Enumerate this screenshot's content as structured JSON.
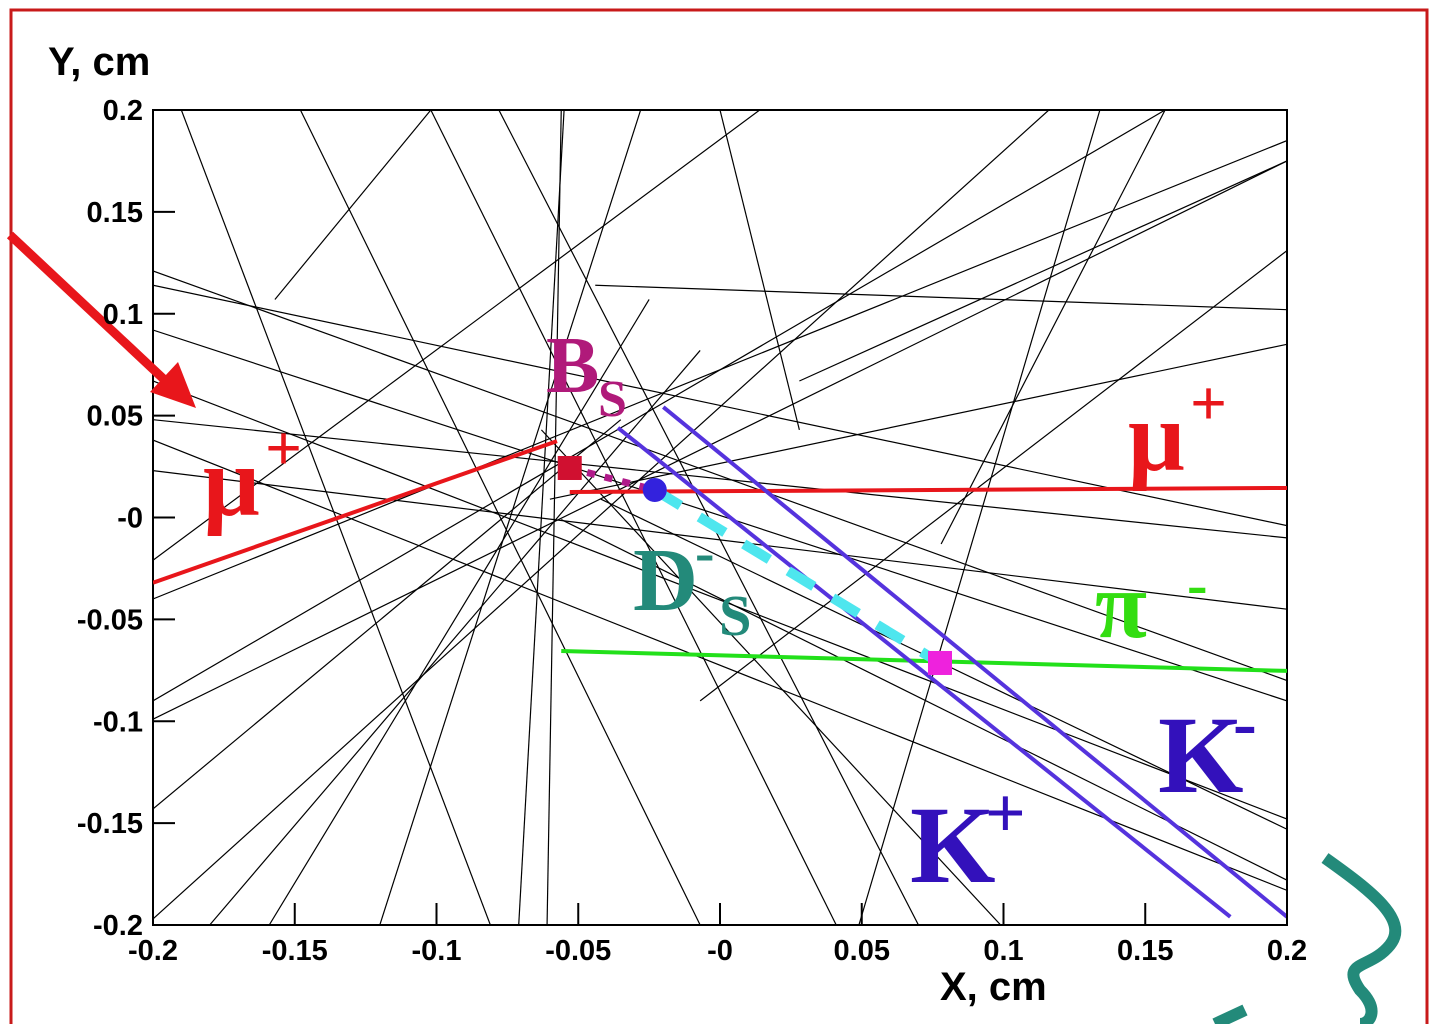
{
  "chart_data": {
    "type": "line",
    "ylabel": "Y, cm",
    "xlabel": "X, cm",
    "xlim": [
      -0.2,
      0.2
    ],
    "ylim": [
      -0.2,
      0.2
    ],
    "xticks": [
      -0.2,
      -0.15,
      -0.1,
      -0.05,
      {
        "value": 0,
        "label": "-0"
      },
      0.05,
      0.1,
      0.15,
      0.2
    ],
    "yticks": [
      0.2,
      0.15,
      0.1,
      0.05,
      {
        "value": 0,
        "label": "-0"
      },
      -0.05,
      -0.1,
      -0.15,
      -0.2
    ],
    "series": [
      {
        "color": "#000000",
        "x": [
          -0.19,
          -0.081
        ],
        "values": [
          0.2,
          -0.2
        ]
      },
      {
        "color": "#000000",
        "x": [
          -0.148,
          -0.007
        ],
        "values": [
          0.2,
          -0.2
        ]
      },
      {
        "color": "#000000",
        "x": [
          -0.055,
          -0.071
        ],
        "values": [
          0.2,
          -0.2
        ]
      },
      {
        "color": "#000000",
        "x": [
          -0.056,
          -0.061
        ],
        "values": [
          0.2,
          -0.2
        ]
      },
      {
        "color": "#000000",
        "x": [
          -0.2,
          0.2
        ],
        "values": [
          0.114,
          -0.004
        ]
      },
      {
        "color": "#000000",
        "x": [
          -0.2,
          0.2
        ],
        "values": [
          0.048,
          -0.01
        ]
      },
      {
        "color": "#000000",
        "x": [
          -0.2,
          0.2
        ],
        "values": [
          -0.099,
          0.175
        ]
      },
      {
        "color": "#000000",
        "x": [
          -0.2,
          0.157
        ],
        "values": [
          -0.09,
          0.2
        ]
      },
      {
        "color": "#000000",
        "x": [
          -0.2,
          0.116
        ],
        "values": [
          -0.197,
          0.2
        ]
      },
      {
        "color": "#000000",
        "x": [
          -0.157,
          -0.102
        ],
        "values": [
          0.107,
          0.2
        ]
      },
      {
        "color": "#000000",
        "x": [
          -0.044,
          0.2
        ],
        "values": [
          0.114,
          0.102
        ]
      },
      {
        "color": "#000000",
        "x": [
          -0.2,
          0.2
        ],
        "values": [
          0.092,
          -0.09
        ]
      },
      {
        "color": "#000000",
        "x": [
          -0.2,
          0.2
        ],
        "values": [
          0.038,
          -0.183
        ]
      },
      {
        "color": "#000000",
        "x": [
          -0.078,
          0.07
        ],
        "values": [
          0.2,
          -0.2
        ]
      },
      {
        "color": "#000000",
        "x": [
          -0.102,
          0.041
        ],
        "values": [
          0.2,
          -0.2
        ]
      },
      {
        "color": "#000000",
        "x": [
          0.0,
          0.028
        ],
        "values": [
          0.2,
          0.043
        ]
      },
      {
        "color": "#000000",
        "x": [
          0.078,
          0.157
        ],
        "values": [
          -0.013,
          0.2
        ]
      },
      {
        "color": "#000000",
        "x": [
          -0.007,
          0.2
        ],
        "values": [
          -0.09,
          0.131
        ]
      },
      {
        "color": "#000000",
        "x": [
          -0.06,
          0.2
        ],
        "values": [
          0.009,
          0.085
        ]
      },
      {
        "color": "#000000",
        "x": [
          -0.2,
          0.2
        ],
        "values": [
          0.023,
          -0.045
        ]
      },
      {
        "color": "#000000",
        "x": [
          -0.2,
          0.2
        ],
        "values": [
          -0.04,
          0.185
        ]
      },
      {
        "color": "#000000",
        "x": [
          -0.18,
          -0.007
        ],
        "values": [
          -0.2,
          0.082
        ]
      },
      {
        "color": "#000000",
        "x": [
          -0.159,
          -0.025
        ],
        "values": [
          -0.2,
          0.107
        ]
      },
      {
        "color": "#000000",
        "x": [
          -0.2,
          -0.035
        ],
        "values": [
          -0.143,
          0.048
        ]
      },
      {
        "color": "#000000",
        "x": [
          0.028,
          0.2
        ],
        "values": [
          0.067,
          0.175
        ]
      },
      {
        "color": "#000000",
        "x": [
          -0.2,
          0.2
        ],
        "values": [
          0.067,
          -0.148
        ]
      },
      {
        "color": "#000000",
        "x": [
          0.099,
          -0.063
        ],
        "values": [
          -0.2,
          0.043
        ]
      },
      {
        "color": "#000000",
        "x": [
          -0.12,
          -0.028
        ],
        "values": [
          -0.2,
          0.2
        ]
      },
      {
        "color": "#000000",
        "x": [
          -0.2,
          0.2
        ],
        "values": [
          0.121,
          -0.08
        ]
      },
      {
        "color": "#000000",
        "x": [
          -0.042,
          0.2
        ],
        "values": [
          0.009,
          -0.153
        ]
      },
      {
        "color": "#000000",
        "x": [
          -0.056,
          0.2
        ],
        "values": [
          -0.001,
          -0.178
        ]
      },
      {
        "color": "#000000",
        "x": [
          -0.2,
          0.014
        ],
        "values": [
          -0.021,
          0.2
        ]
      },
      {
        "color": "#000000",
        "x": [
          0.134,
          0.049
        ],
        "values": [
          0.2,
          -0.2
        ]
      },
      {
        "color": "#e8161b",
        "style": "solid",
        "x": [
          -0.2,
          -0.0575
        ],
        "values": [
          -0.032,
          0.0375
        ]
      },
      {
        "color": "#e8161b",
        "style": "solid",
        "x": [
          -0.053,
          0.2
        ],
        "values": [
          0.0125,
          0.0145
        ]
      },
      {
        "color": "#22e01a",
        "style": "solid",
        "x": [
          -0.056,
          0.2
        ],
        "values": [
          -0.0655,
          -0.0753
        ]
      },
      {
        "color": "#5533dd",
        "style": "solid",
        "x": [
          -0.02,
          0.2
        ],
        "values": [
          0.0542,
          -0.196
        ]
      },
      {
        "color": "#5533dd",
        "style": "solid",
        "x": [
          -0.036,
          0.18
        ],
        "values": [
          0.044,
          -0.196
        ]
      },
      {
        "color": "#b01a8a",
        "style": "dotted",
        "x": [
          -0.053,
          -0.023
        ],
        "values": [
          0.0243,
          0.0135
        ]
      },
      {
        "color": "#4ee6ee",
        "style": "dashed",
        "x": [
          -0.023,
          0.0776
        ],
        "values": [
          0.0135,
          -0.0714
        ]
      }
    ],
    "vertices": [
      {
        "x": -0.053,
        "y": 0.0243,
        "color": "#d01030",
        "shape": "square"
      },
      {
        "x": -0.023,
        "y": 0.0135,
        "color": "#3322dd",
        "shape": "circle"
      },
      {
        "x": 0.0776,
        "y": -0.0714,
        "color": "#ee22dd",
        "shape": "square"
      }
    ],
    "annotations": [
      {
        "text": "μ",
        "sup": "+",
        "color": "#e8161b"
      },
      {
        "text": "μ",
        "sup": "+",
        "color": "#e8161b"
      },
      {
        "text": "B",
        "sub": "S",
        "color": "#b01a7a"
      },
      {
        "text": "D",
        "sup": "-",
        "sub": "S",
        "color": "#238a7a"
      },
      {
        "text": "π",
        "sup": "-",
        "color": "#33dd11"
      },
      {
        "text": "K",
        "sup": "-",
        "color": "#3311bb"
      },
      {
        "text": "K",
        "sup": "+",
        "color": "#3311bb"
      }
    ]
  }
}
